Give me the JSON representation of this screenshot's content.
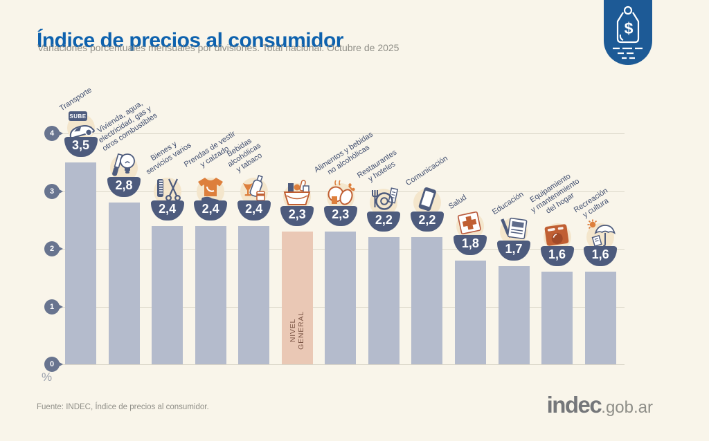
{
  "header": {
    "title": "Índice de precios al consumidor",
    "subtitle": "Variaciones porcentuales mensuales por divisiones. Total nacional. Octubre de 2025"
  },
  "badge": {
    "icon": "price-tag-icon",
    "symbol": "$"
  },
  "chart_data": {
    "type": "bar",
    "title": "Índice de precios al consumidor",
    "subtitle": "Variaciones porcentuales mensuales por divisiones. Total nacional. Octubre de 2025",
    "ylabel": "%",
    "ylim": [
      0,
      4
    ],
    "yticks": [
      0,
      1,
      2,
      3,
      4
    ],
    "grid": true,
    "legend_position": "none",
    "bar_color": "#b4bbcc",
    "highlight_color": "#eac8b5",
    "bubble_color": "#4d5b7d",
    "categories": [
      {
        "label": "Transporte",
        "label_lines": [
          "Transporte"
        ],
        "value": 3.5,
        "display": "3,5",
        "icon": "transporte-icon",
        "icon_text": "SUBE",
        "highlighted": false
      },
      {
        "label": "Vivienda, agua, electricidad, gas y otros combustibles",
        "label_lines": [
          "Vivienda, agua,",
          "electricidad, gas y",
          "otros combustibles"
        ],
        "value": 2.8,
        "display": "2,8",
        "icon": "vivienda-icon",
        "highlighted": false
      },
      {
        "label": "Bienes y servicios varios",
        "label_lines": [
          "Bienes y",
          "servicios varios"
        ],
        "value": 2.4,
        "display": "2,4",
        "icon": "bienes-servicios-icon",
        "highlighted": false
      },
      {
        "label": "Prendas de vestir y calzado",
        "label_lines": [
          "Prendas de vestir",
          "y calzado"
        ],
        "value": 2.4,
        "display": "2,4",
        "icon": "prendas-icon",
        "highlighted": false
      },
      {
        "label": "Bebidas alcohólicas y tabaco",
        "label_lines": [
          "Bebidas",
          "alcohólicas",
          "y tabaco"
        ],
        "value": 2.4,
        "display": "2,4",
        "icon": "bebidas-tabaco-icon",
        "highlighted": false
      },
      {
        "label": "Nivel general",
        "label_lines": [],
        "in_bar_lines": [
          "NIVEL",
          "GENERAL"
        ],
        "value": 2.3,
        "display": "2,3",
        "icon": "canasta-icon",
        "highlighted": true
      },
      {
        "label": "Alimentos y bebidas no alcohólicas",
        "label_lines": [
          "Alimentos y bebidas",
          "no alcohólicas"
        ],
        "value": 2.3,
        "display": "2,3",
        "icon": "alimentos-icon",
        "highlighted": false
      },
      {
        "label": "Restaurantes y hoteles",
        "label_lines": [
          "Restaurantes",
          "y hoteles"
        ],
        "value": 2.2,
        "display": "2,2",
        "icon": "restaurantes-icon",
        "highlighted": false
      },
      {
        "label": "Comunicación",
        "label_lines": [
          "Comunicación"
        ],
        "value": 2.2,
        "display": "2,2",
        "icon": "comunicacion-icon",
        "highlighted": false
      },
      {
        "label": "Salud",
        "label_lines": [
          "Salud"
        ],
        "value": 1.8,
        "display": "1,8",
        "icon": "salud-icon",
        "highlighted": false
      },
      {
        "label": "Educación",
        "label_lines": [
          "Educación"
        ],
        "value": 1.7,
        "display": "1,7",
        "icon": "educacion-icon",
        "highlighted": false
      },
      {
        "label": "Equipamiento y mantenimiento del hogar",
        "label_lines": [
          "Equipamiento",
          "y mantenimiento",
          "del hogar"
        ],
        "value": 1.6,
        "display": "1,6",
        "icon": "equipamiento-icon",
        "highlighted": false
      },
      {
        "label": "Recreación y cultura",
        "label_lines": [
          "Recreación",
          "y cultura"
        ],
        "value": 1.6,
        "display": "1,6",
        "icon": "recreacion-icon",
        "highlighted": false
      }
    ]
  },
  "axis": {
    "unit_label": "%"
  },
  "footer": {
    "source": "Fuente: INDEC, Índice de precios al consumidor."
  },
  "logo": {
    "brand": "indec",
    "domain": ".gob.ar"
  },
  "colors": {
    "background": "#f9f5ea",
    "title_blue": "#0e62ae",
    "bar": "#b4bbcc",
    "highlight_bar": "#eac8b5",
    "bubble_navy": "#4d5b7d",
    "badge_blue": "#1d5a96",
    "label_text": "#3e4c6e",
    "muted_text": "#8f8e87"
  }
}
